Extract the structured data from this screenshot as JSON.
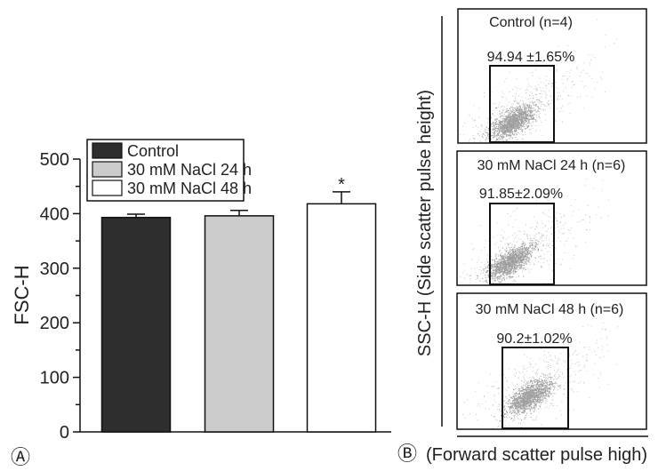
{
  "chart_data": [
    {
      "type": "bar",
      "panel_label": "A",
      "title": "",
      "xlabel": "",
      "ylabel": "FSC-H",
      "ylim": [
        0,
        500
      ],
      "yticks": [
        0,
        100,
        200,
        300,
        400,
        500
      ],
      "categories": [
        "Control",
        "30 mM NaCl 24 h",
        "30 mM NaCl 48 h"
      ],
      "values": [
        393,
        396,
        418
      ],
      "errors": [
        6,
        10,
        22
      ],
      "colors": [
        "#2e2e2e",
        "#cccccc",
        "#ffffff"
      ],
      "significance": [
        "",
        "",
        "*"
      ],
      "legend": [
        {
          "label": "Control",
          "color": "#2e2e2e"
        },
        {
          "label": "30 mM NaCl 24 h",
          "color": "#cccccc"
        },
        {
          "label": "30 mM NaCl 48 h",
          "color": "#ffffff"
        }
      ],
      "legend_position": "top-left",
      "grid": false
    },
    {
      "type": "scatter",
      "panel_label": "B",
      "xlabel": "(Forward scatter pulse high)",
      "ylabel": "SSC-H (Side scatter pulse height)",
      "grid": false,
      "panels": [
        {
          "title": "Control (n=4)",
          "gate_label": "94.94 ±1.65%",
          "gated_percent_mean": 94.94,
          "gated_percent_sd": 1.65
        },
        {
          "title": "30 mM NaCl 24 h (n=6)",
          "gate_label": "91.85±2.09%",
          "gated_percent_mean": 91.85,
          "gated_percent_sd": 2.09
        },
        {
          "title": "30 mM NaCl 48 h (n=6)",
          "gate_label": "90.2±1.02%",
          "gated_percent_mean": 90.2,
          "gated_percent_sd": 1.02
        }
      ]
    }
  ],
  "labels": {
    "panel_a": "Ⓐ",
    "panel_b": "Ⓑ"
  }
}
